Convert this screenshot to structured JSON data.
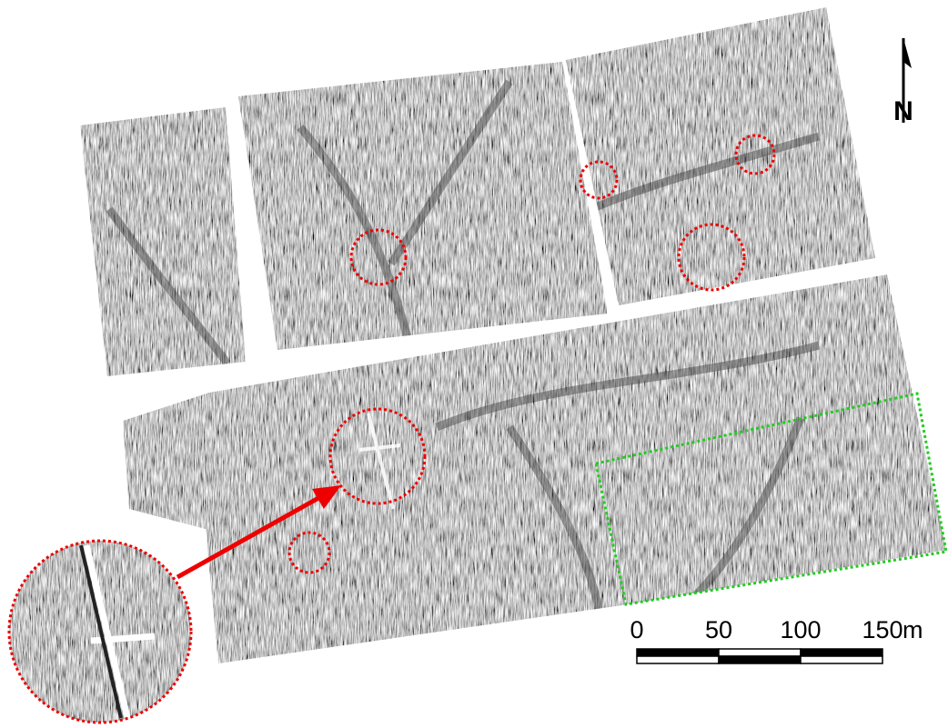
{
  "scale_bar": {
    "ticks": [
      0,
      50,
      100,
      150
    ],
    "unit": "m"
  },
  "north_arrow": {
    "label": "N"
  }
}
